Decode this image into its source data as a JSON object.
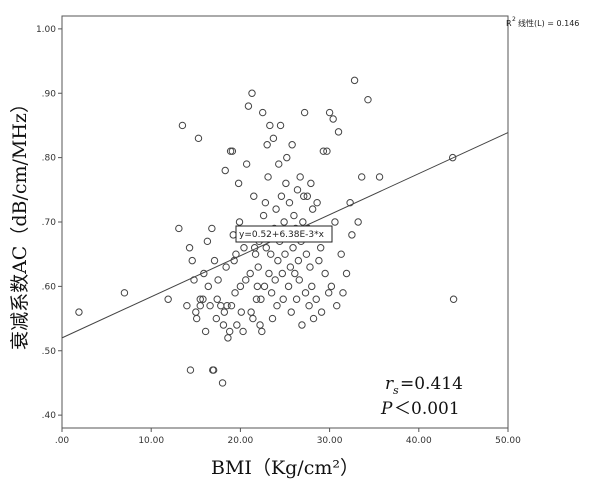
{
  "chart_data": {
    "type": "scatter",
    "xlabel": "BMI（Kg/cm²）",
    "ylabel": "衰减系数AC（dB/cm/MHz）",
    "xlim": [
      0,
      50
    ],
    "ylim": [
      0.38,
      1.02
    ],
    "x_ticks": [
      0,
      10,
      20,
      30,
      40,
      50
    ],
    "x_tick_labels": [
      ".00",
      "10.00",
      "20.00",
      "30.00",
      "40.00",
      "50.00"
    ],
    "y_ticks": [
      0.4,
      0.5,
      0.6,
      0.7,
      0.8,
      0.9,
      1.0
    ],
    "y_tick_labels": [
      ".40",
      ".50",
      ".60",
      ".70",
      ".80",
      ".90",
      "1.00"
    ],
    "grid": false,
    "legend": {
      "superscript_base": "R",
      "superscript": "2",
      "text": "线性(L) = 0.146",
      "position": "top-right"
    },
    "fit_line": {
      "intercept": 0.52,
      "slope": 0.00638
    },
    "equation_label": "y=0.52+6.38E-3*x",
    "annotations": {
      "rs_symbol": "r",
      "rs_subscript": "s",
      "rs_value": "=0.414",
      "p_symbol": "P",
      "p_value": "＜0.001"
    },
    "points": [
      [
        1.9,
        0.56
      ],
      [
        7.0,
        0.59
      ],
      [
        11.9,
        0.58
      ],
      [
        13.1,
        0.69
      ],
      [
        13.5,
        0.85
      ],
      [
        14.0,
        0.57
      ],
      [
        14.3,
        0.66
      ],
      [
        14.4,
        0.47
      ],
      [
        14.6,
        0.64
      ],
      [
        14.8,
        0.61
      ],
      [
        15.0,
        0.56
      ],
      [
        15.1,
        0.55
      ],
      [
        15.3,
        0.83
      ],
      [
        15.5,
        0.58
      ],
      [
        15.5,
        0.57
      ],
      [
        15.8,
        0.58
      ],
      [
        15.9,
        0.62
      ],
      [
        16.1,
        0.53
      ],
      [
        16.3,
        0.67
      ],
      [
        16.4,
        0.6
      ],
      [
        16.6,
        0.57
      ],
      [
        16.8,
        0.69
      ],
      [
        16.9,
        0.47
      ],
      [
        17.0,
        0.47
      ],
      [
        17.1,
        0.64
      ],
      [
        17.3,
        0.55
      ],
      [
        17.4,
        0.58
      ],
      [
        17.5,
        0.61
      ],
      [
        17.8,
        0.57
      ],
      [
        18.0,
        0.45
      ],
      [
        18.1,
        0.54
      ],
      [
        18.2,
        0.56
      ],
      [
        18.3,
        0.78
      ],
      [
        18.4,
        0.63
      ],
      [
        18.5,
        0.57
      ],
      [
        18.6,
        0.52
      ],
      [
        18.8,
        0.53
      ],
      [
        18.9,
        0.81
      ],
      [
        19.0,
        0.57
      ],
      [
        19.1,
        0.81
      ],
      [
        19.2,
        0.68
      ],
      [
        19.3,
        0.64
      ],
      [
        19.4,
        0.59
      ],
      [
        19.5,
        0.65
      ],
      [
        19.6,
        0.54
      ],
      [
        19.8,
        0.76
      ],
      [
        19.9,
        0.7
      ],
      [
        20.0,
        0.6
      ],
      [
        20.1,
        0.56
      ],
      [
        20.3,
        0.53
      ],
      [
        20.4,
        0.66
      ],
      [
        20.6,
        0.61
      ],
      [
        20.7,
        0.79
      ],
      [
        20.9,
        0.88
      ],
      [
        21.0,
        0.68
      ],
      [
        21.1,
        0.62
      ],
      [
        21.2,
        0.56
      ],
      [
        21.3,
        0.9
      ],
      [
        21.4,
        0.55
      ],
      [
        21.5,
        0.74
      ],
      [
        21.6,
        0.66
      ],
      [
        21.7,
        0.65
      ],
      [
        21.8,
        0.58
      ],
      [
        21.9,
        0.6
      ],
      [
        22.0,
        0.63
      ],
      [
        22.1,
        0.67
      ],
      [
        22.2,
        0.54
      ],
      [
        22.3,
        0.58
      ],
      [
        22.4,
        0.53
      ],
      [
        22.5,
        0.87
      ],
      [
        22.6,
        0.71
      ],
      [
        22.7,
        0.6
      ],
      [
        22.8,
        0.73
      ],
      [
        22.9,
        0.66
      ],
      [
        23.0,
        0.82
      ],
      [
        23.1,
        0.77
      ],
      [
        23.2,
        0.62
      ],
      [
        23.3,
        0.85
      ],
      [
        23.4,
        0.65
      ],
      [
        23.5,
        0.59
      ],
      [
        23.6,
        0.55
      ],
      [
        23.7,
        0.83
      ],
      [
        23.8,
        0.69
      ],
      [
        23.9,
        0.61
      ],
      [
        24.0,
        0.72
      ],
      [
        24.1,
        0.57
      ],
      [
        24.2,
        0.64
      ],
      [
        24.3,
        0.79
      ],
      [
        24.4,
        0.67
      ],
      [
        24.5,
        0.85
      ],
      [
        24.6,
        0.74
      ],
      [
        24.7,
        0.62
      ],
      [
        24.8,
        0.58
      ],
      [
        24.9,
        0.7
      ],
      [
        25.0,
        0.65
      ],
      [
        25.1,
        0.76
      ],
      [
        25.2,
        0.8
      ],
      [
        25.3,
        0.68
      ],
      [
        25.4,
        0.6
      ],
      [
        25.5,
        0.73
      ],
      [
        25.6,
        0.63
      ],
      [
        25.7,
        0.56
      ],
      [
        25.8,
        0.82
      ],
      [
        25.9,
        0.66
      ],
      [
        26.0,
        0.71
      ],
      [
        26.1,
        0.62
      ],
      [
        26.2,
        0.69
      ],
      [
        26.3,
        0.58
      ],
      [
        26.4,
        0.75
      ],
      [
        26.5,
        0.64
      ],
      [
        26.6,
        0.61
      ],
      [
        26.7,
        0.77
      ],
      [
        26.8,
        0.67
      ],
      [
        26.9,
        0.54
      ],
      [
        27.0,
        0.7
      ],
      [
        27.1,
        0.74
      ],
      [
        27.2,
        0.87
      ],
      [
        27.3,
        0.59
      ],
      [
        27.4,
        0.65
      ],
      [
        27.5,
        0.74
      ],
      [
        27.6,
        0.69
      ],
      [
        27.7,
        0.57
      ],
      [
        27.8,
        0.63
      ],
      [
        27.9,
        0.76
      ],
      [
        28.0,
        0.6
      ],
      [
        28.1,
        0.72
      ],
      [
        28.2,
        0.55
      ],
      [
        28.3,
        0.68
      ],
      [
        28.5,
        0.58
      ],
      [
        28.6,
        0.73
      ],
      [
        28.8,
        0.64
      ],
      [
        29.0,
        0.66
      ],
      [
        29.1,
        0.56
      ],
      [
        29.3,
        0.81
      ],
      [
        29.5,
        0.62
      ],
      [
        29.7,
        0.81
      ],
      [
        29.9,
        0.59
      ],
      [
        30.0,
        0.87
      ],
      [
        30.2,
        0.6
      ],
      [
        30.4,
        0.86
      ],
      [
        30.6,
        0.7
      ],
      [
        30.8,
        0.57
      ],
      [
        31.0,
        0.84
      ],
      [
        31.3,
        0.65
      ],
      [
        31.5,
        0.59
      ],
      [
        31.9,
        0.62
      ],
      [
        32.3,
        0.73
      ],
      [
        32.5,
        0.68
      ],
      [
        32.8,
        0.92
      ],
      [
        33.2,
        0.7
      ],
      [
        33.6,
        0.77
      ],
      [
        34.3,
        0.89
      ],
      [
        35.6,
        0.77
      ],
      [
        43.8,
        0.8
      ],
      [
        43.9,
        0.58
      ]
    ]
  }
}
